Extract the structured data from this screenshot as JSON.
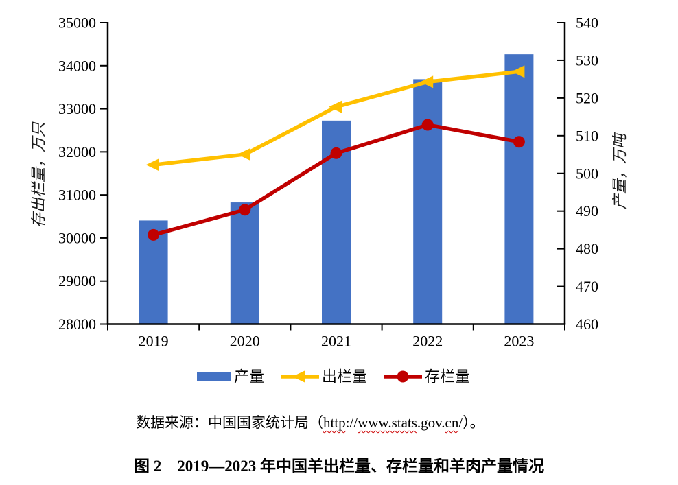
{
  "page": {
    "background": "#ffffff"
  },
  "chart_data": {
    "type": "combo-bar-line",
    "title": "",
    "categories": [
      "2019",
      "2020",
      "2021",
      "2022",
      "2023"
    ],
    "series": [
      {
        "key": "production",
        "name": "产量",
        "chart": "bar",
        "axis": "right",
        "color": "#4472C4",
        "marker": "none",
        "values": [
          487.5,
          492.3,
          514.0,
          525.0,
          531.6
        ]
      },
      {
        "key": "slaughter",
        "name": "出栏量",
        "chart": "line",
        "axis": "left",
        "color": "#FFC000",
        "marker": "triangle-left",
        "values": [
          31699,
          31941,
          33045,
          33624,
          33864
        ]
      },
      {
        "key": "stock",
        "name": "存栏量",
        "chart": "line",
        "axis": "left",
        "color": "#C00000",
        "marker": "circle",
        "values": [
          30072,
          30655,
          31969,
          32627,
          32233
        ]
      }
    ],
    "axes": {
      "left": {
        "title": "存出栏量，万只",
        "min": 28000,
        "max": 35000,
        "step": 1000
      },
      "right": {
        "title": "产量，万吨",
        "min": 460,
        "max": 540,
        "step": 10
      },
      "x": {
        "labels": [
          "2019",
          "2020",
          "2021",
          "2022",
          "2023"
        ]
      }
    },
    "grid": false,
    "legend_position": "bottom",
    "axis_color": "#000000"
  },
  "source_note": {
    "full_text": "数据来源：中国国家统计局（http://www.stats.gov.cn/）。",
    "segments": [
      {
        "text": "数据来源：中国国家统计局（",
        "wavy": false
      },
      {
        "text": "http",
        "wavy": true
      },
      {
        "text": "://",
        "wavy": false
      },
      {
        "text": "www.stats",
        "wavy": true
      },
      {
        "text": ".gov.",
        "wavy": false
      },
      {
        "text": "cn",
        "wavy": true
      },
      {
        "text": "/）。",
        "wavy": false
      }
    ]
  },
  "caption": {
    "text": "图 2　2019—2023 年中国羊出栏量、存栏量和羊肉产量情况"
  }
}
